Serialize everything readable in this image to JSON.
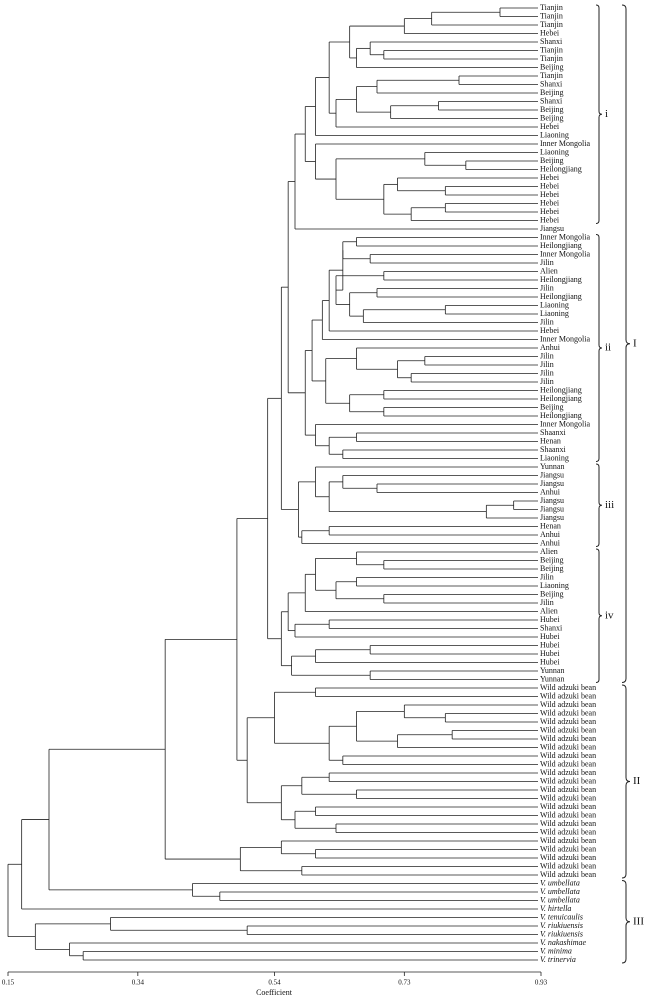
{
  "chart_data": {
    "type": "dendrogram",
    "x_label": "Coefficient",
    "xlim": [
      0.15,
      0.93
    ],
    "xticks": [
      0.15,
      0.34,
      0.54,
      0.73,
      0.93
    ],
    "leaves": [
      "Tianjin",
      "Tianjin",
      "Tianjin",
      "Hebei",
      "Shanxi",
      "Tianjin",
      "Tianjin",
      "Beijing",
      "Tianjin",
      "Shanxi",
      "Beijing",
      "Shanxi",
      "Beijing",
      "Beijing",
      "Hebei",
      "Liaoning",
      "Inner Mongolia",
      "Liaoning",
      "Beijing",
      "Heilongjiang",
      "Hebei",
      "Hebei",
      "Hebei",
      "Hebei",
      "Hebei",
      "Hebei",
      "Jiangsu",
      "Inner Mongolia",
      "Heilongjiang",
      "Inner Mongolia",
      "Jilin",
      "Alien",
      "Heilongjiang",
      "Jilin",
      "Heilongjiang",
      "Liaoning",
      "Liaoning",
      "Jilin",
      "Hebei",
      "Inner Mongolia",
      "Anhui",
      "Jilin",
      "Jilin",
      "Jilin",
      "Jilin",
      "Heilongjiang",
      "Heilongjiang",
      "Beijing",
      "Heilongjiang",
      "Inner Mongolia",
      "Shaanxi",
      "Henan",
      "Shaanxi",
      "Liaoning",
      "Yunnan",
      "Jiangsu",
      "Jiangsu",
      "Anhui",
      "Jiangsu",
      "Jiangsu",
      "Jiangsu",
      "Henan",
      "Anhui",
      "Anhui",
      "Alien",
      "Beijing",
      "Beijing",
      "Jilin",
      "Liaoning",
      "Beijing",
      "Jilin",
      "Alien",
      "Hubei",
      "Shanxi",
      "Hubei",
      "Hubei",
      "Hubei",
      "Hubei",
      "Yunnan",
      "Yunnan",
      "Wild adzuki bean",
      "Wild adzuki bean",
      "Wild adzuki bean",
      "Wild adzuki bean",
      "Wild adzuki bean",
      "Wild adzuki bean",
      "Wild adzuki bean",
      "Wild adzuki bean",
      "Wild adzuki bean",
      "Wild adzuki bean",
      "Wild adzuki bean",
      "Wild adzuki bean",
      "Wild adzuki bean",
      "Wild adzuki bean",
      "Wild adzuki bean",
      "Wild adzuki bean",
      "Wild adzuki bean",
      "Wild adzuki bean",
      "Wild adzuki bean",
      "Wild adzuki bean",
      "Wild adzuki bean",
      "Wild adzuki bean",
      "Wild adzuki bean",
      "V. umbellata",
      "V. umbellata",
      "V. umbellata",
      "V. hirtella",
      "V. tenuicaulis",
      "V. riukiuensis",
      "V. riukiuensis",
      "V. nakashimae",
      "V. minima",
      "V. trinervia"
    ],
    "subclusters": [
      "i",
      "ii",
      "iii",
      "iv"
    ],
    "groups": [
      "I",
      "II",
      "III"
    ],
    "tree": [
      0.15,
      [
        0.17,
        [
          0.21,
          [
            0.38,
            [
              0.485,
              [
                0.53,
                [
                  0.55,
                  [
                    0.56,
                    [
                      0.57,
                      [
                        0.585,
                        [
                          0.6,
                          [
                            0.62,
                            [
                              0.65,
                              [
                                0.73,
                                [
                                  0.77,
                                  [
                                    0.87,
                                    0,
                                    1
                                  ],
                                  2
                                ],
                                3
                              ],
                              [
                                0.66,
                                [
                                  0.68,
                                  [
                                    0.7,
                                    5,
                                    6
                                  ],
                                  4
                                ],
                                7
                              ]
                            ],
                            [
                              0.63,
                              [
                                0.66,
                                [
                                  0.69,
                                  [
                                    0.81,
                                    8,
                                    9
                                  ],
                                  10
                                ],
                                [
                                  0.71,
                                  [
                                    0.78,
                                    11,
                                    12
                                  ],
                                  13
                                ]
                              ],
                              14
                            ]
                          ],
                          15
                        ],
                        [
                          0.6,
                          16,
                          [
                            0.63,
                            [
                              0.76,
                              17,
                              [
                                0.82,
                                18,
                                19
                              ]
                            ],
                            [
                              0.7,
                              [
                                0.72,
                                20,
                                [
                                  0.79,
                                  21,
                                  22
                                ]
                              ],
                              [
                                0.74,
                                [
                                  0.79,
                                  23,
                                  24
                                ],
                                25
                              ]
                            ]
                          ]
                        ]
                      ],
                      26
                    ],
                    [
                      0.585,
                      [
                        0.595,
                        [
                          0.61,
                          [
                            0.62,
                            [
                              0.64,
                              [
                                0.64,
                                [
                                  0.66,
                                  27,
                                  28
                                ],
                                [
                                  0.68,
                                  29,
                                  30
                                ]
                              ],
                              [
                                0.63,
                                [
                                  0.7,
                                  31,
                                  32
                                ],
                                [
                                  0.65,
                                  [
                                    0.69,
                                    33,
                                    34
                                  ],
                                  [
                                    0.67,
                                    [
                                      0.79,
                                      35,
                                      36
                                    ],
                                    37
                                  ]
                                ]
                              ]
                            ],
                            38
                          ],
                          39
                        ],
                        [
                          0.615,
                          [
                            0.66,
                            40,
                            [
                              0.72,
                              [
                                0.76,
                                41,
                                42
                              ],
                              [
                                0.74,
                                43,
                                44
                              ]
                            ]
                          ],
                          [
                            0.65,
                            [
                              0.7,
                              45,
                              46
                            ],
                            [
                              0.7,
                              47,
                              48
                            ]
                          ]
                        ]
                      ],
                      [
                        0.6,
                        49,
                        [
                          0.62,
                          [
                            0.66,
                            50,
                            51
                          ],
                          [
                            0.64,
                            52,
                            53
                          ]
                        ]
                      ]
                    ]
                  ],
                  [
                    0.575,
                    [
                      0.6,
                      54,
                      [
                        0.62,
                        [
                          0.64,
                          55,
                          [
                            0.69,
                            56,
                            57
                          ]
                        ],
                        [
                          0.85,
                          [
                            0.89,
                            58,
                            59
                          ],
                          60
                        ]
                      ]
                    ],
                    [
                      0.58,
                      [
                        0.62,
                        61,
                        62
                      ],
                      63
                    ]
                  ]
                ],
                [
                  0.55,
                  [
                    0.56,
                    [
                      0.585,
                      [
                        0.6,
                        [
                          0.66,
                          64,
                          [
                            0.7,
                            65,
                            66
                          ]
                        ],
                        [
                          0.63,
                          [
                            0.66,
                            67,
                            68
                          ],
                          [
                            0.7,
                            69,
                            70
                          ]
                        ]
                      ],
                      71
                    ],
                    [
                      0.57,
                      [
                        0.62,
                        72,
                        73
                      ],
                      74
                    ]
                  ],
                  [
                    0.565,
                    [
                      0.6,
                      [
                        0.68,
                        75,
                        76
                      ],
                      77
                    ],
                    [
                      0.68,
                      78,
                      79
                    ]
                  ]
                ]
              ],
              [
                0.5,
                [
                  0.54,
                  [
                    0.6,
                    80,
                    81
                  ],
                  [
                    0.62,
                    [
                      0.66,
                      [
                        0.73,
                        82,
                        [
                          0.79,
                          83,
                          84
                        ]
                      ],
                      [
                        0.72,
                        [
                          0.8,
                          85,
                          86
                        ],
                        87
                      ]
                    ],
                    [
                      0.64,
                      88,
                      89
                    ]
                  ]
                ],
                [
                  0.55,
                  [
                    0.58,
                    [
                      0.62,
                      90,
                      91
                    ],
                    [
                      0.66,
                      92,
                      93
                    ]
                  ],
                  [
                    0.57,
                    [
                      0.6,
                      94,
                      95
                    ],
                    [
                      0.63,
                      96,
                      97
                    ]
                  ]
                ]
              ]
            ],
            [
              0.49,
              [
                0.55,
                98,
                [
                  0.6,
                  99,
                  100
                ]
              ],
              [
                0.58,
                101,
                102
              ]
            ]
          ],
          [
            0.42,
            103,
            [
              0.46,
              104,
              105
            ]
          ]
        ],
        106
      ],
      [
        0.19,
        [
          0.3,
          107,
          [
            0.5,
            108,
            109
          ]
        ],
        [
          0.24,
          110,
          [
            0.26,
            111,
            112
          ]
        ]
      ]
    ]
  }
}
